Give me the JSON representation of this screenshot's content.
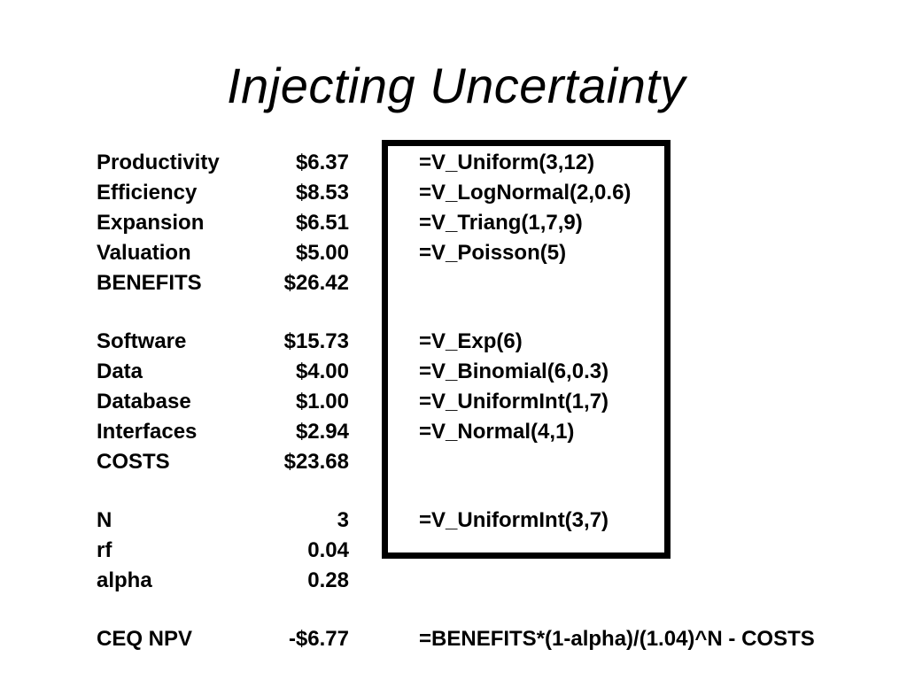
{
  "title": "Injecting Uncertainty",
  "rows": [
    {
      "label": "Productivity",
      "value": "$6.37",
      "formula": "=V_Uniform(3,12)"
    },
    {
      "label": "Efficiency",
      "value": "$8.53",
      "formula": "=V_LogNormal(2,0.6)"
    },
    {
      "label": "Expansion",
      "value": "$6.51",
      "formula": "=V_Triang(1,7,9)"
    },
    {
      "label": "Valuation",
      "value": "$5.00",
      "formula": "=V_Poisson(5)"
    },
    {
      "label": "BENEFITS",
      "value": "$26.42",
      "formula": ""
    },
    {
      "label": "Software",
      "value": "$15.73",
      "formula": "=V_Exp(6)"
    },
    {
      "label": "Data",
      "value": "$4.00",
      "formula": "=V_Binomial(6,0.3)"
    },
    {
      "label": "Database",
      "value": "$1.00",
      "formula": "=V_UniformInt(1,7)"
    },
    {
      "label": "Interfaces",
      "value": "$2.94",
      "formula": "=V_Normal(4,1)"
    },
    {
      "label": "COSTS",
      "value": "$23.68",
      "formula": ""
    },
    {
      "label": "N",
      "value": "3",
      "formula": "=V_UniformInt(3,7)"
    },
    {
      "label": "rf",
      "value": "0.04",
      "formula": ""
    },
    {
      "label": "alpha",
      "value": "0.28",
      "formula": ""
    },
    {
      "label": "CEQ NPV",
      "value": "-$6.77",
      "formula": "=BENEFITS*(1-alpha)/(1.04)^N - COSTS"
    }
  ]
}
